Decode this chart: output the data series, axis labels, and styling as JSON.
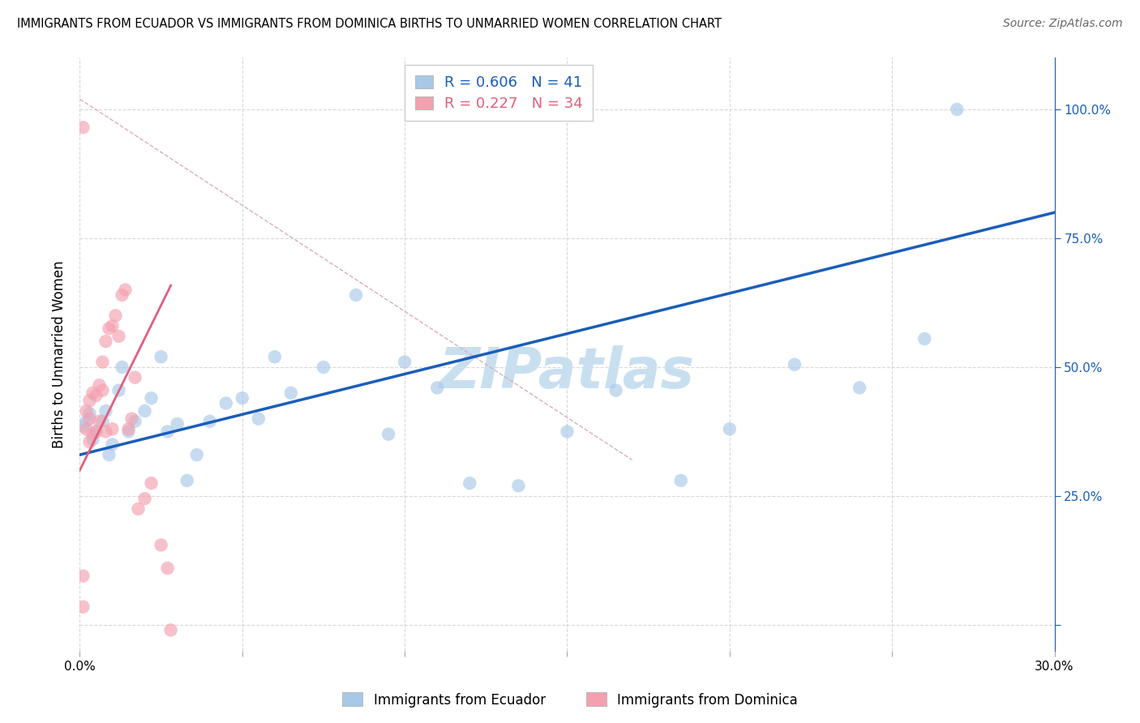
{
  "title": "IMMIGRANTS FROM ECUADOR VS IMMIGRANTS FROM DOMINICA BIRTHS TO UNMARRIED WOMEN CORRELATION CHART",
  "source": "Source: ZipAtlas.com",
  "ylabel": "Births to Unmarried Women",
  "xlim": [
    0.0,
    0.3
  ],
  "ylim": [
    -0.05,
    1.1
  ],
  "legend1_r": "0.606",
  "legend1_n": "41",
  "legend2_r": "0.227",
  "legend2_n": "34",
  "blue_scatter": "#a8c8e8",
  "pink_scatter": "#f4a0b0",
  "line_blue": "#1a5eb8",
  "line_pink": "#e0607a",
  "diag_color": "#d8b0b8",
  "watermark_color": "#c8dff0",
  "ecuador_x": [
    0.001,
    0.002,
    0.003,
    0.004,
    0.005,
    0.007,
    0.008,
    0.009,
    0.01,
    0.012,
    0.013,
    0.015,
    0.017,
    0.02,
    0.022,
    0.025,
    0.027,
    0.03,
    0.033,
    0.036,
    0.04,
    0.045,
    0.05,
    0.055,
    0.06,
    0.065,
    0.075,
    0.085,
    0.095,
    0.1,
    0.11,
    0.12,
    0.135,
    0.15,
    0.165,
    0.185,
    0.2,
    0.22,
    0.24,
    0.26,
    0.27
  ],
  "ecuador_y": [
    0.385,
    0.395,
    0.41,
    0.36,
    0.375,
    0.395,
    0.415,
    0.33,
    0.35,
    0.455,
    0.5,
    0.375,
    0.395,
    0.415,
    0.44,
    0.52,
    0.375,
    0.39,
    0.28,
    0.33,
    0.395,
    0.43,
    0.44,
    0.4,
    0.52,
    0.45,
    0.5,
    0.64,
    0.37,
    0.51,
    0.46,
    0.275,
    0.27,
    0.375,
    0.455,
    0.28,
    0.38,
    0.505,
    0.46,
    0.555,
    1.0
  ],
  "dominica_x": [
    0.001,
    0.001,
    0.001,
    0.002,
    0.002,
    0.003,
    0.003,
    0.003,
    0.004,
    0.004,
    0.005,
    0.005,
    0.006,
    0.006,
    0.007,
    0.007,
    0.008,
    0.008,
    0.009,
    0.01,
    0.01,
    0.011,
    0.012,
    0.013,
    0.014,
    0.015,
    0.016,
    0.017,
    0.018,
    0.02,
    0.022,
    0.025,
    0.027,
    0.028
  ],
  "dominica_y": [
    0.035,
    0.095,
    0.965,
    0.38,
    0.415,
    0.355,
    0.4,
    0.435,
    0.37,
    0.45,
    0.375,
    0.445,
    0.395,
    0.465,
    0.455,
    0.51,
    0.375,
    0.55,
    0.575,
    0.38,
    0.58,
    0.6,
    0.56,
    0.64,
    0.65,
    0.38,
    0.4,
    0.48,
    0.225,
    0.245,
    0.275,
    0.155,
    0.11,
    -0.01
  ]
}
